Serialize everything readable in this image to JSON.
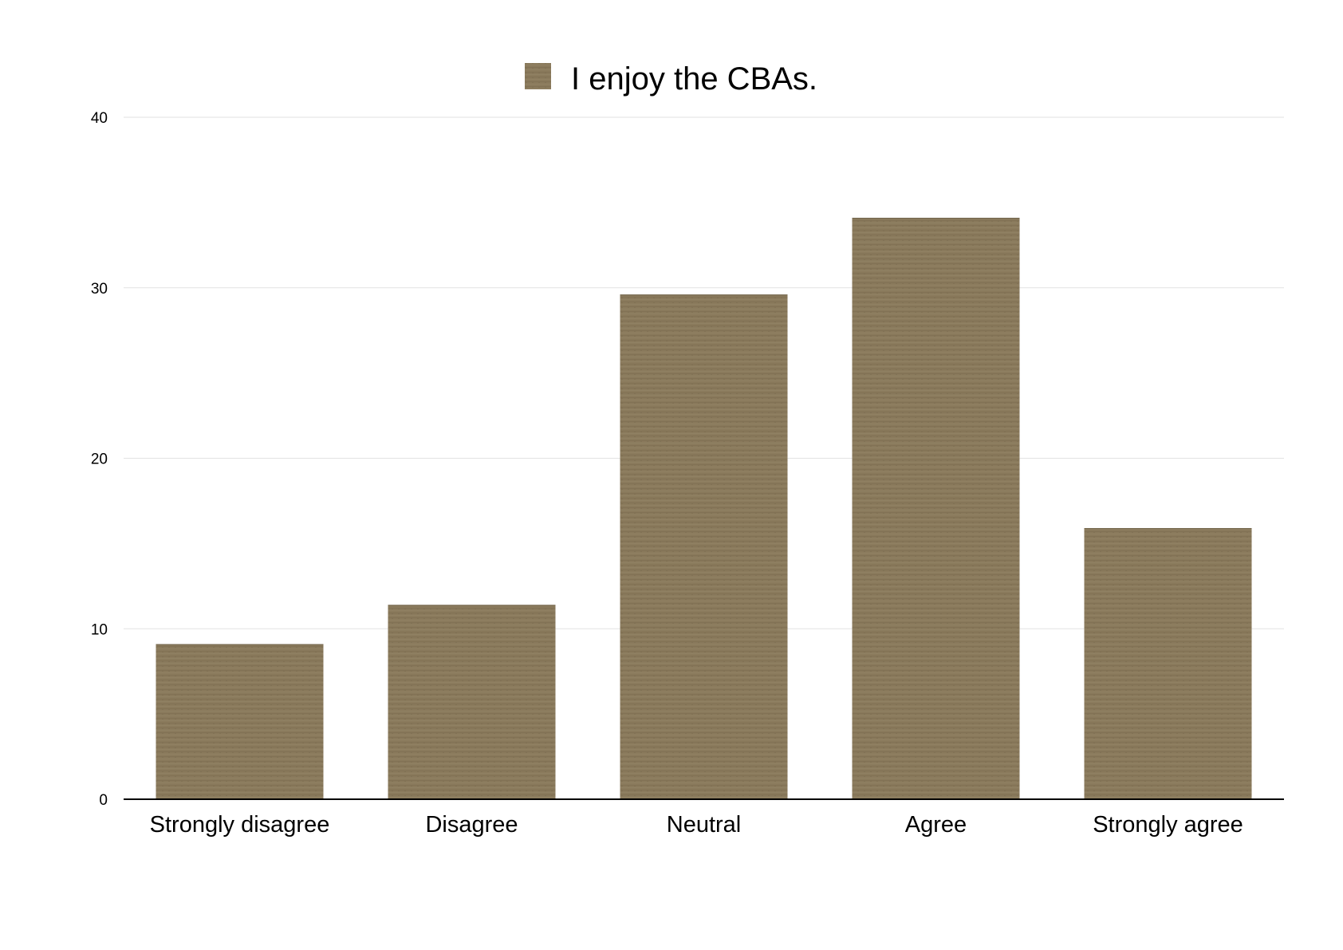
{
  "chart_data": {
    "type": "bar",
    "categories": [
      "Strongly disagree",
      "Disagree",
      "Neutral",
      "Agree",
      "Strongly agree"
    ],
    "series": [
      {
        "name": "I enjoy the CBAs.",
        "values": [
          9.1,
          11.4,
          29.6,
          34.1,
          15.9
        ]
      }
    ],
    "ylim": [
      0,
      40
    ],
    "yticks": [
      0,
      10,
      20,
      30,
      40
    ],
    "grid": true,
    "legend_position": "top-center",
    "bar_color": "#8a7a5c",
    "grid_color": "#e2e2e2",
    "axis_color": "#000000"
  }
}
